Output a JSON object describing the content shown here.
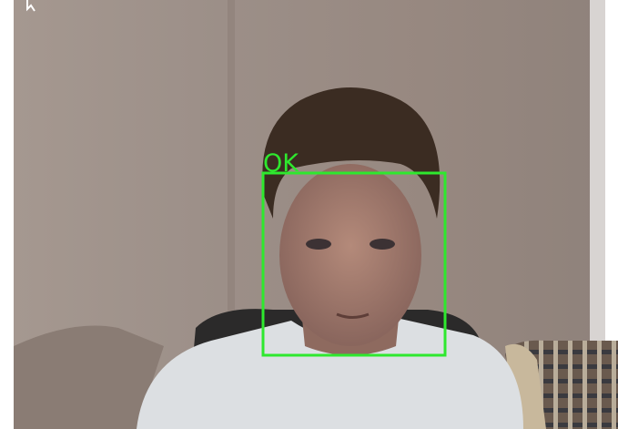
{
  "detection": {
    "label": "OK"
  }
}
